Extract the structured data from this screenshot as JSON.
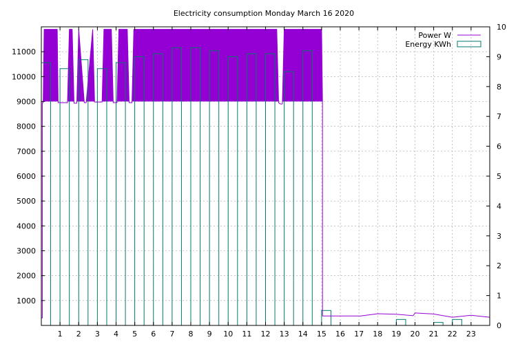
{
  "chart_data": {
    "type": "line",
    "title": "Electricity consumption Monday March 16 2020",
    "xlabel": "",
    "ylabel": "",
    "y2label": "",
    "x_ticks": [
      "1",
      "2",
      "3",
      "4",
      "5",
      "6",
      "7",
      "8",
      "9",
      "10",
      "11",
      "12",
      "13",
      "14",
      "15",
      "16",
      "17",
      "18",
      "19",
      "20",
      "21",
      "22",
      "23"
    ],
    "xlim": [
      0,
      24
    ],
    "ylim": [
      0,
      12000
    ],
    "y_ticks": [
      "1000",
      "2000",
      "3000",
      "4000",
      "5000",
      "6000",
      "7000",
      "8000",
      "9000",
      "10000",
      "11000"
    ],
    "y2lim": [
      0,
      10
    ],
    "y2_ticks": [
      "0",
      "1",
      "2",
      "3",
      "4",
      "5",
      "6",
      "7",
      "8",
      "9",
      "10"
    ],
    "grid": true,
    "legend_position": "top-right",
    "series": [
      {
        "name": "Power W",
        "axis": "y1",
        "color": "#9400d3",
        "x": [
          0.0,
          0.05,
          0.05,
          0.1,
          0.1,
          0.15,
          0.85,
          0.9,
          1.4,
          1.5,
          1.65,
          1.75,
          1.9,
          2.0,
          2.3,
          2.4,
          2.75,
          2.85,
          3.25,
          3.35,
          3.75,
          3.85,
          4.05,
          4.15,
          4.6,
          4.7,
          4.85,
          4.95,
          5.0,
          12.6,
          12.7,
          12.8,
          12.9,
          13.0,
          15.0,
          15.05,
          15.05,
          17.0,
          17.1,
          18.0,
          19.0,
          19.9,
          20.0,
          20.5,
          21.0,
          22.0,
          23.0,
          24.0
        ],
        "y": [
          300,
          300,
          8950,
          8950,
          9050,
          11900,
          11900,
          8950,
          8950,
          11900,
          11900,
          8930,
          8930,
          11900,
          8950,
          8950,
          11900,
          8980,
          8980,
          11900,
          11900,
          8950,
          8950,
          11900,
          11900,
          8950,
          8950,
          11900,
          11900,
          11900,
          8950,
          8900,
          8900,
          11900,
          11900,
          9000,
          380,
          380,
          380,
          470,
          450,
          390,
          500,
          480,
          460,
          330,
          410,
          330
        ]
      },
      {
        "name": "Energy KWh",
        "axis": "y2",
        "type": "bar",
        "color": "#00796b",
        "categories": [
          "0",
          "1",
          "2",
          "3",
          "4",
          "5",
          "6",
          "7",
          "8",
          "9",
          "10",
          "11",
          "12",
          "13",
          "14",
          "15",
          "16",
          "17",
          "18",
          "19",
          "20",
          "21",
          "22",
          "23"
        ],
        "values": [
          8.8,
          8.6,
          8.9,
          8.6,
          8.8,
          9.0,
          9.1,
          9.3,
          9.3,
          9.2,
          9.0,
          9.1,
          9.1,
          8.5,
          9.2,
          0.5,
          0.0,
          0.0,
          0.0,
          0.2,
          0.0,
          0.1,
          0.2,
          0.0
        ]
      }
    ]
  },
  "legend": {
    "power_label": "Power W",
    "energy_label": "Energy KWh"
  },
  "colors": {
    "power": "#9400d3",
    "energy": "#00796b",
    "grid": "#a0a0a0",
    "axis": "#000000"
  }
}
